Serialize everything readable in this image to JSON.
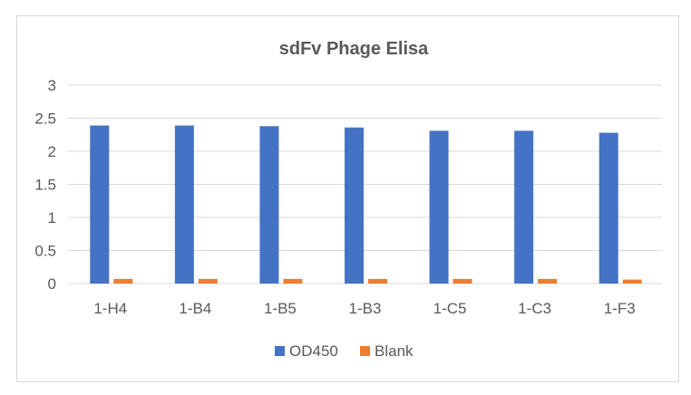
{
  "chart_data": {
    "type": "bar",
    "title": "sdFv Phage Elisa",
    "categories": [
      "1-H4",
      "1-B4",
      "1-B5",
      "1-B3",
      "1-C5",
      "1-C3",
      "1-F3"
    ],
    "series": [
      {
        "name": "OD450",
        "color": "#4472C4",
        "values": [
          2.39,
          2.39,
          2.38,
          2.36,
          2.31,
          2.31,
          2.28
        ]
      },
      {
        "name": "Blank",
        "color": "#ED7D31",
        "values": [
          0.07,
          0.07,
          0.07,
          0.07,
          0.07,
          0.07,
          0.06
        ]
      }
    ],
    "yticks": [
      "0",
      "0.5",
      "1",
      "1.5",
      "2",
      "2.5",
      "3"
    ],
    "ylim": [
      0,
      3
    ],
    "grid": true,
    "legend_position": "bottom"
  }
}
